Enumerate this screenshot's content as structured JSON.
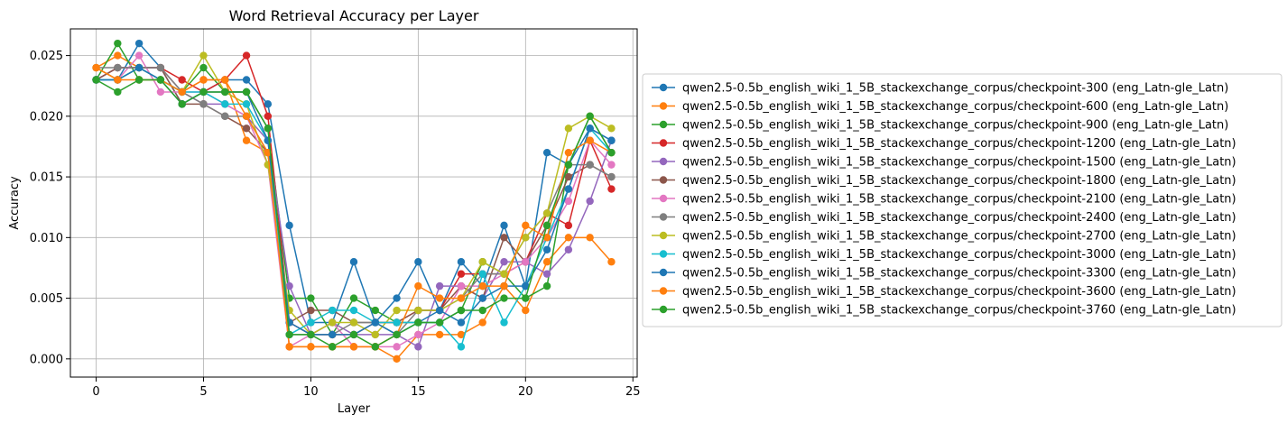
{
  "chart_data": {
    "type": "line",
    "title": "Word Retrieval Accuracy per Layer",
    "xlabel": "Layer",
    "ylabel": "Accuracy",
    "xlim": [
      -1.2,
      25.2
    ],
    "ylim": [
      -0.0015,
      0.0272
    ],
    "xticks": [
      0,
      5,
      10,
      15,
      20,
      25
    ],
    "xtick_labels": [
      "0",
      "5",
      "10",
      "15",
      "20",
      "25"
    ],
    "yticks": [
      0.0,
      0.005,
      0.01,
      0.015,
      0.02,
      0.025
    ],
    "ytick_labels": [
      "0.000",
      "0.005",
      "0.010",
      "0.015",
      "0.020",
      "0.025"
    ],
    "grid": true,
    "legend_position": "right, outside plot",
    "x": [
      0,
      1,
      2,
      3,
      4,
      5,
      6,
      7,
      8,
      9,
      10,
      11,
      12,
      13,
      14,
      15,
      16,
      17,
      18,
      19,
      20,
      21,
      22,
      23,
      24
    ],
    "series": [
      {
        "name": "qwen2.5-0.5b_english_wiki_1_5B_stackexchange_corpus/checkpoint-300 (eng_Latn-gle_Latn)",
        "color": "#1f77b4",
        "values": [
          0.023,
          0.023,
          0.026,
          0.024,
          0.021,
          0.022,
          0.023,
          0.023,
          0.021,
          0.011,
          0.003,
          0.003,
          0.008,
          0.003,
          0.005,
          0.008,
          0.004,
          0.008,
          0.006,
          0.011,
          0.006,
          0.017,
          0.016,
          0.019,
          0.018
        ]
      },
      {
        "name": "qwen2.5-0.5b_english_wiki_1_5B_stackexchange_corpus/checkpoint-600 (eng_Latn-gle_Latn)",
        "color": "#ff7f0e",
        "values": [
          0.024,
          0.025,
          0.024,
          0.024,
          0.022,
          0.023,
          0.023,
          0.018,
          0.017,
          0.001,
          0.001,
          0.001,
          0.001,
          0.001,
          0.0,
          0.002,
          0.002,
          0.002,
          0.003,
          0.006,
          0.004,
          0.008,
          0.01,
          0.01,
          0.008
        ]
      },
      {
        "name": "qwen2.5-0.5b_english_wiki_1_5B_stackexchange_corpus/checkpoint-900 (eng_Latn-gle_Latn)",
        "color": "#2ca02c",
        "values": [
          0.023,
          0.026,
          0.023,
          0.023,
          0.022,
          0.024,
          0.022,
          0.022,
          0.019,
          0.005,
          0.005,
          0.002,
          0.005,
          0.004,
          0.003,
          0.003,
          0.003,
          0.004,
          0.008,
          0.007,
          0.005,
          0.006,
          0.016,
          0.02,
          0.017
        ]
      },
      {
        "name": "qwen2.5-0.5b_english_wiki_1_5B_stackexchange_corpus/checkpoint-1200 (eng_Latn-gle_Latn)",
        "color": "#d62728",
        "values": [
          0.023,
          0.024,
          0.024,
          0.024,
          0.023,
          0.022,
          0.023,
          0.025,
          0.02,
          0.003,
          0.002,
          0.002,
          0.002,
          0.003,
          0.003,
          0.004,
          0.004,
          0.007,
          0.007,
          0.007,
          0.008,
          0.012,
          0.011,
          0.018,
          0.014
        ]
      },
      {
        "name": "qwen2.5-0.5b_english_wiki_1_5B_stackexchange_corpus/checkpoint-1500 (eng_Latn-gle_Latn)",
        "color": "#9467bd",
        "values": [
          0.023,
          0.024,
          0.024,
          0.024,
          0.022,
          0.021,
          0.021,
          0.02,
          0.018,
          0.006,
          0.002,
          0.003,
          0.002,
          0.002,
          0.002,
          0.001,
          0.006,
          0.006,
          0.005,
          0.008,
          0.008,
          0.007,
          0.009,
          0.013,
          0.018
        ]
      },
      {
        "name": "qwen2.5-0.5b_english_wiki_1_5B_stackexchange_corpus/checkpoint-1800 (eng_Latn-gle_Latn)",
        "color": "#8c564b",
        "values": [
          0.023,
          0.024,
          0.024,
          0.024,
          0.021,
          0.021,
          0.02,
          0.019,
          0.017,
          0.003,
          0.004,
          0.004,
          0.003,
          0.003,
          0.003,
          0.004,
          0.004,
          0.006,
          0.005,
          0.01,
          0.008,
          0.011,
          0.015,
          0.016,
          0.015
        ]
      },
      {
        "name": "qwen2.5-0.5b_english_wiki_1_5B_stackexchange_corpus/checkpoint-2100 (eng_Latn-gle_Latn)",
        "color": "#e377c2",
        "values": [
          0.024,
          0.023,
          0.025,
          0.022,
          0.022,
          0.022,
          0.021,
          0.02,
          0.016,
          0.001,
          0.002,
          0.003,
          0.001,
          0.001,
          0.001,
          0.002,
          0.003,
          0.006,
          0.006,
          0.007,
          0.008,
          0.01,
          0.013,
          0.018,
          0.016
        ]
      },
      {
        "name": "qwen2.5-0.5b_english_wiki_1_5B_stackexchange_corpus/checkpoint-2400 (eng_Latn-gle_Latn)",
        "color": "#7f7f7f",
        "values": [
          0.024,
          0.024,
          0.024,
          0.024,
          0.022,
          0.021,
          0.02,
          0.02,
          0.017,
          0.002,
          0.002,
          0.002,
          0.003,
          0.003,
          0.002,
          0.004,
          0.004,
          0.005,
          0.007,
          0.007,
          0.01,
          0.012,
          0.016,
          0.016,
          0.015
        ]
      },
      {
        "name": "qwen2.5-0.5b_english_wiki_1_5B_stackexchange_corpus/checkpoint-2700 (eng_Latn-gle_Latn)",
        "color": "#bcbd22",
        "values": [
          0.024,
          0.023,
          0.024,
          0.023,
          0.022,
          0.025,
          0.022,
          0.021,
          0.016,
          0.004,
          0.002,
          0.003,
          0.003,
          0.002,
          0.004,
          0.004,
          0.004,
          0.005,
          0.008,
          0.007,
          0.01,
          0.012,
          0.019,
          0.02,
          0.019
        ]
      },
      {
        "name": "qwen2.5-0.5b_english_wiki_1_5B_stackexchange_corpus/checkpoint-3000 (eng_Latn-gle_Latn)",
        "color": "#17becf",
        "values": [
          0.023,
          0.023,
          0.024,
          0.023,
          0.022,
          0.022,
          0.021,
          0.021,
          0.018,
          0.002,
          0.003,
          0.004,
          0.004,
          0.003,
          0.003,
          0.003,
          0.003,
          0.001,
          0.007,
          0.003,
          0.006,
          0.01,
          0.014,
          0.019,
          0.017
        ]
      },
      {
        "name": "qwen2.5-0.5b_english_wiki_1_5B_stackexchange_corpus/checkpoint-3300 (eng_Latn-gle_Latn)",
        "color": "#1f77b4",
        "values": [
          0.023,
          0.023,
          0.024,
          0.023,
          0.021,
          0.022,
          0.022,
          0.022,
          0.018,
          0.003,
          0.002,
          0.002,
          0.002,
          0.003,
          0.002,
          0.003,
          0.004,
          0.003,
          0.005,
          0.006,
          0.006,
          0.009,
          0.014,
          0.019,
          0.018
        ]
      },
      {
        "name": "qwen2.5-0.5b_english_wiki_1_5B_stackexchange_corpus/checkpoint-3600 (eng_Latn-gle_Latn)",
        "color": "#ff7f0e",
        "values": [
          0.024,
          0.023,
          0.023,
          0.023,
          0.022,
          0.023,
          0.023,
          0.02,
          0.017,
          0.001,
          0.001,
          0.001,
          0.001,
          0.001,
          0.002,
          0.006,
          0.005,
          0.005,
          0.006,
          0.006,
          0.011,
          0.01,
          0.017,
          0.018,
          0.017
        ]
      },
      {
        "name": "qwen2.5-0.5b_english_wiki_1_5B_stackexchange_corpus/checkpoint-3760 (eng_Latn-gle_Latn)",
        "color": "#2ca02c",
        "values": [
          0.023,
          0.022,
          0.023,
          0.023,
          0.021,
          0.022,
          0.022,
          0.022,
          0.019,
          0.002,
          0.002,
          0.001,
          0.002,
          0.001,
          0.002,
          0.003,
          0.003,
          0.004,
          0.004,
          0.005,
          0.005,
          0.011,
          0.016,
          0.02,
          0.017
        ]
      }
    ]
  }
}
